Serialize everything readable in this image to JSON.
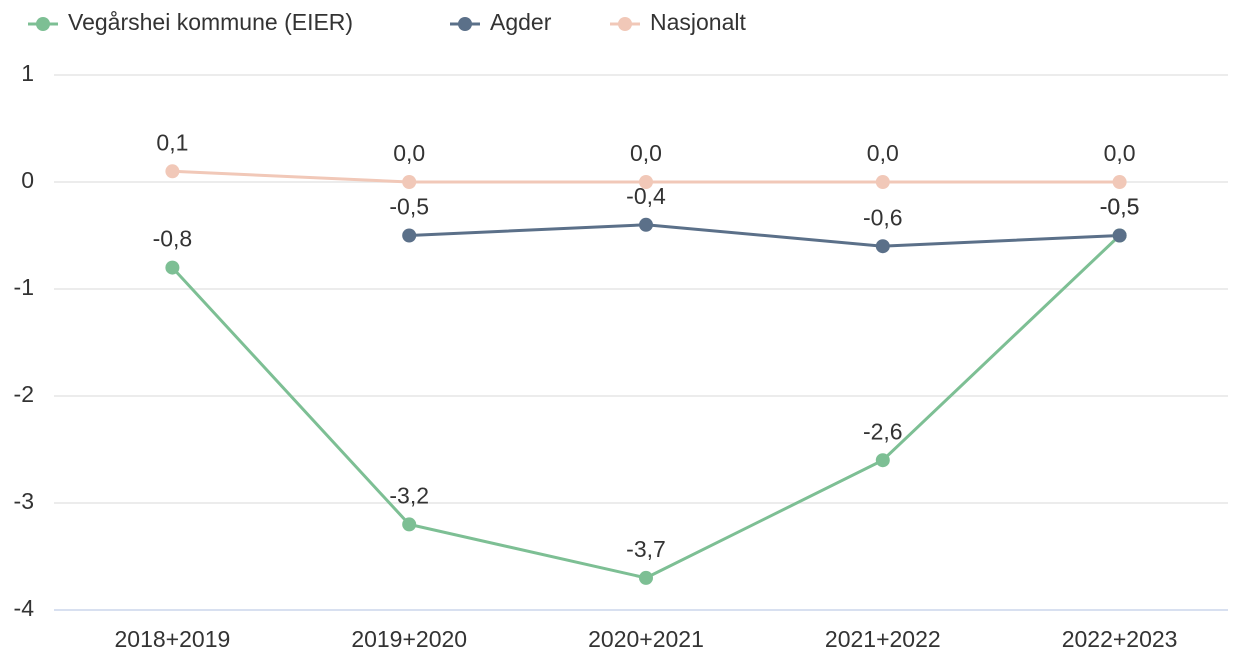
{
  "chart_data": {
    "type": "line",
    "categories": [
      "2018+2019",
      "2019+2020",
      "2020+2021",
      "2021+2022",
      "2022+2023"
    ],
    "series": [
      {
        "name": "Vegårshei kommune (EIER)",
        "color": "#7dbf94",
        "values": [
          -0.8,
          -3.2,
          -3.7,
          -2.6,
          -0.5
        ],
        "value_labels": [
          "-0,8",
          "-3,2",
          "-3,7",
          "-2,6",
          "-0,5"
        ]
      },
      {
        "name": "Agder",
        "color": "#5b7089",
        "values": [
          null,
          -0.5,
          -0.4,
          -0.6,
          -0.5
        ],
        "value_labels": [
          null,
          "-0,5",
          "-0,4",
          "-0,6",
          "-0,5"
        ]
      },
      {
        "name": "Nasjonalt",
        "color": "#f1c8b8",
        "values": [
          0.1,
          0.0,
          0.0,
          0.0,
          0.0
        ],
        "value_labels": [
          "0,1",
          "0,0",
          "0,0",
          "0,0",
          "0,0"
        ]
      }
    ],
    "ylim": [
      -4,
      1
    ],
    "yticks": [
      1,
      0,
      -1,
      -2,
      -3,
      -4
    ],
    "grid": true,
    "legend": "top-left"
  }
}
